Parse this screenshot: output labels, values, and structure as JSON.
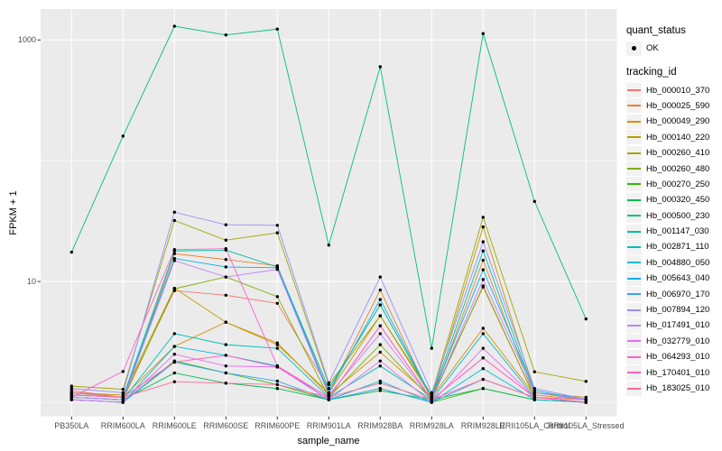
{
  "figure": {
    "background": "#FFFFFF",
    "panel_background": "#EBEBEB",
    "gridline_color": "#FFFFFF",
    "tick_color": "#333333",
    "tick_label_color": "#4D4D4D",
    "point_color": "#000000"
  },
  "axes": {
    "x": {
      "title": "sample_name",
      "tick_labels": [
        "PB350LA",
        "RRIM600LA",
        "RRIM600LE",
        "RRIM600SE",
        "RRIM600PE",
        "RRIM901LA",
        "RRIM928BA",
        "RRIM928LA",
        "RRIM928LE",
        "RRII105LA_Control",
        "RRII105LA_Stressed"
      ]
    },
    "y": {
      "title": "FPKM + 1",
      "tick_labels": [
        "1000",
        "10"
      ],
      "scale": "log10"
    }
  },
  "legend": {
    "quant_status": {
      "title": "quant_status",
      "items": [
        {
          "label": "OK",
          "symbol": "black-point"
        }
      ]
    },
    "tracking": {
      "title": "tracking_id"
    }
  },
  "chart_data": {
    "type": "line",
    "title": "",
    "xlabel": "sample_name",
    "ylabel": "FPKM + 1",
    "y_scale": "log10",
    "y_ticks": [
      10,
      1000
    ],
    "y_minor_gridlines": [
      1,
      100
    ],
    "ylim": [
      0.85,
      1500
    ],
    "legend_position": "right",
    "grid": true,
    "point_marker": "black filled circle (quant_status = OK)",
    "categories": [
      "PB350LA",
      "RRIM600LA",
      "RRIM600LE",
      "RRIM600SE",
      "RRIM600PE",
      "RRIM901LA",
      "RRIM928BA",
      "RRIM928LA",
      "RRIM928LE",
      "RRII105LA_Control",
      "RRII105LA_Stressed"
    ],
    "series": [
      {
        "name": "Hb_000010_370",
        "color": "#F8766D",
        "values": [
          1.25,
          1.1,
          8.4,
          7.7,
          6.6,
          1.3,
          6.4,
          1.1,
          9.0,
          1.1,
          1.05
        ]
      },
      {
        "name": "Hb_000025_590",
        "color": "#EA8331",
        "values": [
          1.1,
          1.05,
          17.0,
          15.2,
          13.5,
          1.2,
          8.5,
          1.05,
          15.0,
          1.1,
          1.0
        ]
      },
      {
        "name": "Hb_000049_290",
        "color": "#D89000",
        "values": [
          1.15,
          1.1,
          2.9,
          4.6,
          3.1,
          1.15,
          2.6,
          1.1,
          4.1,
          1.15,
          1.05
        ]
      },
      {
        "name": "Hb_000140_220",
        "color": "#C09B00",
        "values": [
          1.2,
          1.15,
          8.8,
          4.6,
          3.0,
          1.2,
          5.2,
          1.1,
          28.3,
          1.2,
          1.1
        ]
      },
      {
        "name": "Hb_000260_410",
        "color": "#A3A500",
        "values": [
          1.36,
          1.28,
          32.0,
          22.0,
          25.3,
          1.4,
          5.2,
          1.15,
          34.0,
          1.79,
          1.49
        ]
      },
      {
        "name": "Hb_000260_480",
        "color": "#7CAE00",
        "values": [
          1.1,
          1.05,
          8.7,
          10.9,
          7.5,
          1.1,
          3.0,
          1.05,
          9.2,
          1.1,
          1.0
        ]
      },
      {
        "name": "Hb_000270_250",
        "color": "#39B600",
        "values": [
          1.05,
          1.0,
          2.2,
          1.75,
          1.4,
          1.05,
          1.3,
          1.0,
          1.3,
          1.05,
          1.0
        ]
      },
      {
        "name": "Hb_000320_450",
        "color": "#00BB4E",
        "values": [
          1.1,
          1.05,
          1.75,
          1.44,
          1.3,
          1.05,
          1.25,
          1.05,
          1.3,
          1.05,
          1.0
        ]
      },
      {
        "name": "Hb_000500_230",
        "color": "#00BF7D",
        "values": [
          17.5,
          160,
          1300,
          1100,
          1230,
          20,
          600,
          2.8,
          1130,
          46,
          4.9
        ]
      },
      {
        "name": "Hb_001147_030",
        "color": "#00C1A3",
        "values": [
          1.2,
          1.1,
          17.9,
          18.2,
          13.2,
          1.3,
          6.4,
          1.1,
          17.9,
          1.2,
          1.05
        ]
      },
      {
        "name": "Hb_002871_110",
        "color": "#00BFC4",
        "values": [
          1.1,
          1.05,
          3.7,
          3.0,
          2.8,
          1.1,
          2.0,
          1.05,
          3.7,
          1.1,
          1.0
        ]
      },
      {
        "name": "Hb_004880_050",
        "color": "#00BAE0",
        "values": [
          1.05,
          1.0,
          2.9,
          2.45,
          2.0,
          1.05,
          1.5,
          1.0,
          1.9,
          1.05,
          1.0
        ]
      },
      {
        "name": "Hb_005643_040",
        "color": "#00B0F6",
        "values": [
          1.15,
          1.1,
          15.5,
          13.2,
          13.0,
          1.2,
          7.1,
          1.1,
          12.5,
          1.25,
          1.05
        ]
      },
      {
        "name": "Hb_006970_170",
        "color": "#35A2FF",
        "values": [
          1.05,
          1.0,
          2.15,
          1.75,
          1.5,
          1.05,
          1.3,
          1.0,
          1.55,
          1.1,
          1.0
        ]
      },
      {
        "name": "Hb_007894_120",
        "color": "#9590FF",
        "values": [
          1.3,
          1.2,
          37.5,
          29.5,
          29.2,
          1.45,
          10.9,
          1.2,
          21.3,
          1.3,
          1.06
        ]
      },
      {
        "name": "Hb_017491_010",
        "color": "#BF80FF",
        "values": [
          1.1,
          1.05,
          14.9,
          10.9,
          12.6,
          1.15,
          3.7,
          1.05,
          10.4,
          1.2,
          1.05
        ]
      },
      {
        "name": "Hb_032779_010",
        "color": "#E76BF3",
        "values": [
          1.05,
          1.0,
          2.5,
          2.0,
          1.96,
          1.05,
          2.2,
          1.0,
          2.8,
          1.1,
          1.0
        ]
      },
      {
        "name": "Hb_064293_010",
        "color": "#FD61D1",
        "values": [
          1.1,
          1.8,
          18.4,
          18.7,
          2.0,
          1.1,
          4.3,
          1.05,
          2.33,
          1.1,
          1.0
        ]
      },
      {
        "name": "Hb_170401_010",
        "color": "#FF62BC",
        "values": [
          1.15,
          1.1,
          2.15,
          2.45,
          1.96,
          1.1,
          4.3,
          1.05,
          2.33,
          1.1,
          1.05
        ]
      },
      {
        "name": "Hb_183025_010",
        "color": "#FF6A98",
        "values": [
          1.2,
          1.1,
          1.48,
          1.44,
          1.4,
          1.1,
          1.44,
          1.05,
          1.55,
          1.1,
          1.0
        ]
      }
    ]
  }
}
